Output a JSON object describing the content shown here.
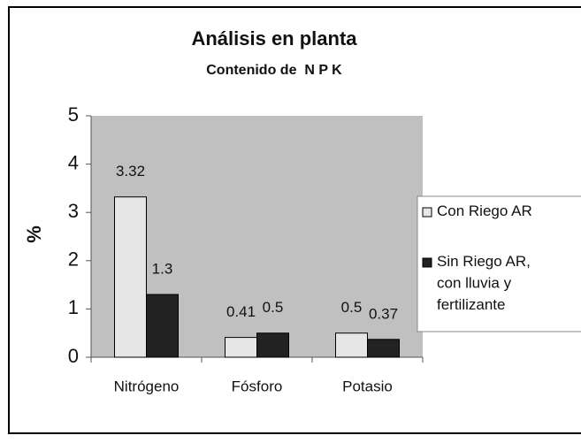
{
  "chart_data": {
    "type": "bar",
    "title": "Análisis en planta",
    "subtitle": "Contenido de  N P K",
    "y_label": "%",
    "categories": [
      "Nitrógeno",
      "Fósforo",
      "Potasio"
    ],
    "series": [
      {
        "name": "Con Riego AR",
        "color": "#e6e6e6",
        "values": [
          3.32,
          0.41,
          0.5
        ]
      },
      {
        "name": "Sin Riego AR, con lluvia y fertilizante",
        "color": "#222222",
        "values": [
          1.3,
          0.5,
          0.37
        ]
      }
    ],
    "ylim": [
      0,
      5
    ],
    "yticks": [
      0,
      1,
      2,
      3,
      4,
      5
    ],
    "legend": "right"
  }
}
